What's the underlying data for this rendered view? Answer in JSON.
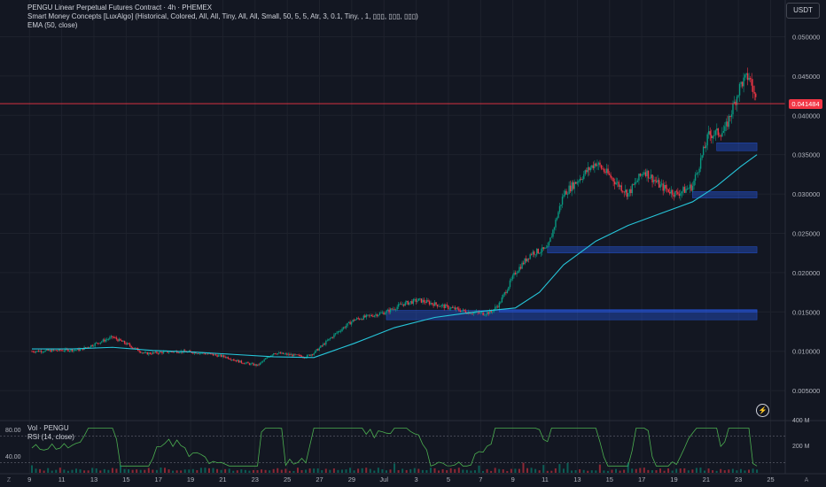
{
  "legend": {
    "title": "PENGU Linear Perpetual Futures Contract · 4h · PHEMEX",
    "smc": "Smart Money Concepts [LuxAlgo] (Historical, Colored, All, All, Tiny, All, All, Small, 50, 5, 5, Atr, 3, 0.1, Tiny, , 1, ▯▯▯, ▯▯▯, ▯▯▯)",
    "ema": "EMA (50, close)"
  },
  "sub_legend": {
    "vol": "Vol · PENGU",
    "rsi": "RSI (14, close)"
  },
  "currency": "USDT",
  "current_price": "0.041484",
  "icons": {
    "lightning": "lightning-icon",
    "z": "Z",
    "a": "A"
  },
  "colors": {
    "background": "#131722",
    "up": "#089981",
    "down": "#f23645",
    "ema": "#26c6da",
    "rsi": "#4caf50",
    "zone": "#2962ff",
    "price_line": "#f23645"
  },
  "chart_data": {
    "type": "candlestick",
    "x_tick_labels": [
      "9",
      "11",
      "13",
      "15",
      "17",
      "19",
      "21",
      "23",
      "25",
      "27",
      "29",
      "Jul",
      "3",
      "5",
      "7",
      "9",
      "11",
      "13",
      "15",
      "17",
      "19",
      "21",
      "23",
      "25"
    ],
    "y_tick_labels": [
      "0.050000",
      "0.045000",
      "0.040000",
      "0.035000",
      "0.030000",
      "0.025000",
      "0.020000",
      "0.015000",
      "0.010000",
      "0.005000"
    ],
    "y_ticks": [
      0.05,
      0.045,
      0.04,
      0.035,
      0.03,
      0.025,
      0.02,
      0.015,
      0.01,
      0.005
    ],
    "ylim": [
      0.0,
      0.05
    ],
    "current_price": 0.041484,
    "close_path": [
      [
        0,
        0.01
      ],
      [
        6,
        0.0102
      ],
      [
        10,
        0.0118
      ],
      [
        12,
        0.0108
      ],
      [
        14,
        0.0097
      ],
      [
        18,
        0.01
      ],
      [
        21,
        0.0098
      ],
      [
        24,
        0.0093
      ],
      [
        26,
        0.0086
      ],
      [
        28,
        0.0082
      ],
      [
        30,
        0.0098
      ],
      [
        34,
        0.0093
      ],
      [
        35,
        0.0098
      ],
      [
        38,
        0.0125
      ],
      [
        40,
        0.014
      ],
      [
        42,
        0.0145
      ],
      [
        44,
        0.015
      ],
      [
        46,
        0.016
      ],
      [
        48,
        0.0165
      ],
      [
        50,
        0.016
      ],
      [
        52,
        0.0155
      ],
      [
        54,
        0.015
      ],
      [
        56,
        0.0148
      ],
      [
        57,
        0.015
      ],
      [
        58,
        0.016
      ],
      [
        60,
        0.02
      ],
      [
        62,
        0.0225
      ],
      [
        64,
        0.023
      ],
      [
        66,
        0.03
      ],
      [
        68,
        0.032
      ],
      [
        70,
        0.034
      ],
      [
        72,
        0.032
      ],
      [
        74,
        0.03
      ],
      [
        76,
        0.033
      ],
      [
        78,
        0.031
      ],
      [
        80,
        0.03
      ],
      [
        82,
        0.031
      ],
      [
        84,
        0.0375
      ],
      [
        86,
        0.038
      ],
      [
        88,
        0.044
      ],
      [
        89,
        0.045
      ],
      [
        90,
        0.0415
      ]
    ],
    "ema": [
      [
        0,
        0.0103
      ],
      [
        5,
        0.0103
      ],
      [
        10,
        0.0105
      ],
      [
        15,
        0.0101
      ],
      [
        20,
        0.0099
      ],
      [
        25,
        0.0096
      ],
      [
        30,
        0.0093
      ],
      [
        35,
        0.0092
      ],
      [
        40,
        0.011
      ],
      [
        45,
        0.013
      ],
      [
        50,
        0.0143
      ],
      [
        55,
        0.015
      ],
      [
        60,
        0.0155
      ],
      [
        63,
        0.0175
      ],
      [
        66,
        0.021
      ],
      [
        70,
        0.024
      ],
      [
        74,
        0.026
      ],
      [
        78,
        0.0275
      ],
      [
        82,
        0.029
      ],
      [
        85,
        0.031
      ],
      [
        88,
        0.0335
      ],
      [
        90,
        0.035
      ]
    ],
    "zones": [
      {
        "from_day": 85,
        "to_day": 90,
        "low": 0.0355,
        "high": 0.0365
      },
      {
        "from_day": 82,
        "to_day": 90,
        "low": 0.0295,
        "high": 0.0303
      },
      {
        "from_day": 64,
        "to_day": 90,
        "low": 0.0225,
        "high": 0.0233
      },
      {
        "from_day": 44,
        "to_day": 90,
        "low": 0.014,
        "high": 0.0152
      },
      {
        "from_day": 58,
        "to_day": 90,
        "low": 0.015,
        "high": 0.0153
      }
    ],
    "rsi": {
      "y_tick_labels": [
        "80.00",
        "40.00"
      ],
      "levels": [
        70,
        30
      ]
    },
    "volume": {
      "y_tick_labels": [
        "400 M",
        "200 M"
      ]
    }
  }
}
